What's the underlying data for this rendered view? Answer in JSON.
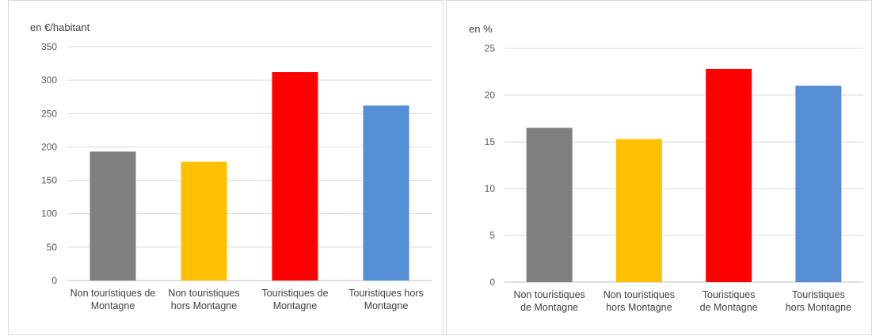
{
  "chart_data": [
    {
      "type": "bar",
      "unit_label": "en €/habitant",
      "categories": [
        [
          "Non touristiques de",
          "Montagne"
        ],
        [
          "Non touristiques",
          "hors Montagne"
        ],
        [
          "Touristiques de",
          "Montagne"
        ],
        [
          "Touristiques hors",
          "Montagne"
        ]
      ],
      "values": [
        193,
        178,
        312,
        262
      ],
      "colors": [
        "#7f7f7f",
        "#ffc000",
        "#ff0000",
        "#558ed5"
      ],
      "ylim": [
        0,
        350
      ],
      "yticks": [
        0,
        50,
        100,
        150,
        200,
        250,
        300,
        350
      ],
      "grid": true
    },
    {
      "type": "bar",
      "unit_label": "en %",
      "categories": [
        [
          "Non touristiques",
          "de Montagne"
        ],
        [
          "Non touristiques",
          "hors Montagne"
        ],
        [
          "Touristiques",
          "de Montagne"
        ],
        [
          "Touristiques",
          "hors Montagne"
        ]
      ],
      "values": [
        16.5,
        15.3,
        22.8,
        21.0
      ],
      "colors": [
        "#7f7f7f",
        "#ffc000",
        "#ff0000",
        "#558ed5"
      ],
      "ylim": [
        0,
        25
      ],
      "yticks": [
        0,
        5,
        10,
        15,
        20,
        25
      ],
      "grid": true
    }
  ]
}
